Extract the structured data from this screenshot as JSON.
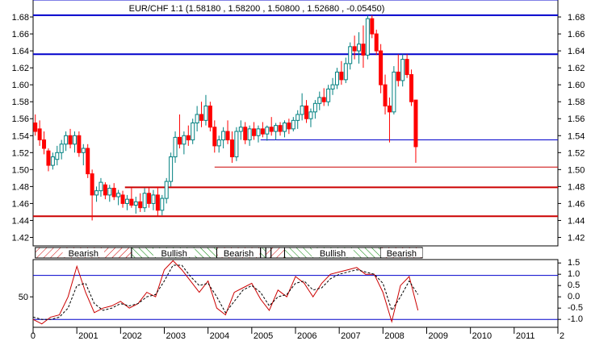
{
  "chart_data": {
    "type": "candlestick",
    "title": "EUR/CHF 1:1 (1.58180 , 1.58200 , 1.50800 , 1.52680 , -0.05450)",
    "xlabel": "",
    "ylabel": "",
    "x_ticks": [
      "2001",
      "2002",
      "2003",
      "2004",
      "2005",
      "2006",
      "2007",
      "2008",
      "2009",
      "2010",
      "2011",
      "2012"
    ],
    "x_tick_first_partial": "0",
    "x_tick_last_partial": "2",
    "x_range": [
      2000.0,
      2012.0
    ],
    "price": {
      "ylim": [
        1.41,
        1.7
      ],
      "y_ticks": [
        "1.42",
        "1.44",
        "1.46",
        "1.48",
        "1.50",
        "1.52",
        "1.54",
        "1.56",
        "1.58",
        "1.60",
        "1.62",
        "1.64",
        "1.66",
        "1.68"
      ],
      "grid": false,
      "colors": {
        "up": "#008080",
        "down": "#ff0000"
      },
      "candles": [
        {
          "x": 2000.05,
          "o": 1.555,
          "h": 1.565,
          "l": 1.54,
          "c": 1.545
        },
        {
          "x": 2000.15,
          "o": 1.548,
          "h": 1.558,
          "l": 1.528,
          "c": 1.535
        },
        {
          "x": 2000.25,
          "o": 1.535,
          "h": 1.545,
          "l": 1.518,
          "c": 1.525
        },
        {
          "x": 2000.35,
          "o": 1.522,
          "h": 1.525,
          "l": 1.498,
          "c": 1.505
        },
        {
          "x": 2000.45,
          "o": 1.505,
          "h": 1.52,
          "l": 1.5,
          "c": 1.515
        },
        {
          "x": 2000.55,
          "o": 1.512,
          "h": 1.528,
          "l": 1.505,
          "c": 1.52
        },
        {
          "x": 2000.65,
          "o": 1.52,
          "h": 1.535,
          "l": 1.512,
          "c": 1.53
        },
        {
          "x": 2000.75,
          "o": 1.53,
          "h": 1.545,
          "l": 1.522,
          "c": 1.54
        },
        {
          "x": 2000.85,
          "o": 1.54,
          "h": 1.548,
          "l": 1.525,
          "c": 1.53
        },
        {
          "x": 2000.95,
          "o": 1.53,
          "h": 1.545,
          "l": 1.52,
          "c": 1.54
        },
        {
          "x": 2001.05,
          "o": 1.54,
          "h": 1.545,
          "l": 1.515,
          "c": 1.52
        },
        {
          "x": 2001.15,
          "o": 1.52,
          "h": 1.53,
          "l": 1.505,
          "c": 1.525
        },
        {
          "x": 2001.25,
          "o": 1.525,
          "h": 1.53,
          "l": 1.49,
          "c": 1.495
        },
        {
          "x": 2001.35,
          "o": 1.495,
          "h": 1.5,
          "l": 1.44,
          "c": 1.47
        },
        {
          "x": 2001.45,
          "o": 1.47,
          "h": 1.48,
          "l": 1.462,
          "c": 1.475
        },
        {
          "x": 2001.55,
          "o": 1.475,
          "h": 1.49,
          "l": 1.468,
          "c": 1.485
        },
        {
          "x": 2001.65,
          "o": 1.482,
          "h": 1.485,
          "l": 1.465,
          "c": 1.47
        },
        {
          "x": 2001.75,
          "o": 1.47,
          "h": 1.482,
          "l": 1.462,
          "c": 1.478
        },
        {
          "x": 2001.85,
          "o": 1.478,
          "h": 1.484,
          "l": 1.464,
          "c": 1.468
        },
        {
          "x": 2001.95,
          "o": 1.468,
          "h": 1.476,
          "l": 1.458,
          "c": 1.472
        },
        {
          "x": 2002.05,
          "o": 1.47,
          "h": 1.475,
          "l": 1.455,
          "c": 1.46
        },
        {
          "x": 2002.15,
          "o": 1.46,
          "h": 1.47,
          "l": 1.452,
          "c": 1.465
        },
        {
          "x": 2002.25,
          "o": 1.465,
          "h": 1.478,
          "l": 1.455,
          "c": 1.458
        },
        {
          "x": 2002.35,
          "o": 1.458,
          "h": 1.468,
          "l": 1.448,
          "c": 1.462
        },
        {
          "x": 2002.45,
          "o": 1.462,
          "h": 1.472,
          "l": 1.45,
          "c": 1.455
        },
        {
          "x": 2002.55,
          "o": 1.455,
          "h": 1.478,
          "l": 1.45,
          "c": 1.472
        },
        {
          "x": 2002.65,
          "o": 1.472,
          "h": 1.478,
          "l": 1.455,
          "c": 1.46
        },
        {
          "x": 2002.75,
          "o": 1.46,
          "h": 1.476,
          "l": 1.452,
          "c": 1.47
        },
        {
          "x": 2002.85,
          "o": 1.47,
          "h": 1.48,
          "l": 1.445,
          "c": 1.452
        },
        {
          "x": 2002.95,
          "o": 1.452,
          "h": 1.47,
          "l": 1.446,
          "c": 1.466
        },
        {
          "x": 2003.05,
          "o": 1.466,
          "h": 1.49,
          "l": 1.46,
          "c": 1.486
        },
        {
          "x": 2003.15,
          "o": 1.486,
          "h": 1.52,
          "l": 1.48,
          "c": 1.515
        },
        {
          "x": 2003.25,
          "o": 1.515,
          "h": 1.545,
          "l": 1.508,
          "c": 1.538
        },
        {
          "x": 2003.35,
          "o": 1.538,
          "h": 1.565,
          "l": 1.525,
          "c": 1.53
        },
        {
          "x": 2003.45,
          "o": 1.53,
          "h": 1.545,
          "l": 1.518,
          "c": 1.54
        },
        {
          "x": 2003.55,
          "o": 1.54,
          "h": 1.552,
          "l": 1.528,
          "c": 1.535
        },
        {
          "x": 2003.65,
          "o": 1.535,
          "h": 1.56,
          "l": 1.53,
          "c": 1.555
        },
        {
          "x": 2003.75,
          "o": 1.555,
          "h": 1.575,
          "l": 1.545,
          "c": 1.565
        },
        {
          "x": 2003.85,
          "o": 1.565,
          "h": 1.58,
          "l": 1.55,
          "c": 1.558
        },
        {
          "x": 2003.95,
          "o": 1.558,
          "h": 1.588,
          "l": 1.552,
          "c": 1.575
        },
        {
          "x": 2004.05,
          "o": 1.575,
          "h": 1.58,
          "l": 1.545,
          "c": 1.55
        },
        {
          "x": 2004.15,
          "o": 1.55,
          "h": 1.558,
          "l": 1.52,
          "c": 1.528
        },
        {
          "x": 2004.25,
          "o": 1.528,
          "h": 1.54,
          "l": 1.52,
          "c": 1.535
        },
        {
          "x": 2004.35,
          "o": 1.535,
          "h": 1.55,
          "l": 1.525,
          "c": 1.545
        },
        {
          "x": 2004.45,
          "o": 1.545,
          "h": 1.558,
          "l": 1.53,
          "c": 1.535
        },
        {
          "x": 2004.55,
          "o": 1.535,
          "h": 1.545,
          "l": 1.508,
          "c": 1.515
        },
        {
          "x": 2004.65,
          "o": 1.515,
          "h": 1.55,
          "l": 1.51,
          "c": 1.545
        },
        {
          "x": 2004.75,
          "o": 1.545,
          "h": 1.558,
          "l": 1.535,
          "c": 1.55
        },
        {
          "x": 2004.85,
          "o": 1.55,
          "h": 1.556,
          "l": 1.53,
          "c": 1.535
        },
        {
          "x": 2004.95,
          "o": 1.535,
          "h": 1.552,
          "l": 1.528,
          "c": 1.548
        },
        {
          "x": 2005.05,
          "o": 1.548,
          "h": 1.556,
          "l": 1.535,
          "c": 1.54
        },
        {
          "x": 2005.15,
          "o": 1.54,
          "h": 1.552,
          "l": 1.532,
          "c": 1.548
        },
        {
          "x": 2005.25,
          "o": 1.548,
          "h": 1.556,
          "l": 1.538,
          "c": 1.542
        },
        {
          "x": 2005.35,
          "o": 1.542,
          "h": 1.552,
          "l": 1.534,
          "c": 1.55
        },
        {
          "x": 2005.45,
          "o": 1.55,
          "h": 1.562,
          "l": 1.54,
          "c": 1.545
        },
        {
          "x": 2005.55,
          "o": 1.545,
          "h": 1.555,
          "l": 1.535,
          "c": 1.552
        },
        {
          "x": 2005.65,
          "o": 1.552,
          "h": 1.556,
          "l": 1.54,
          "c": 1.545
        },
        {
          "x": 2005.75,
          "o": 1.545,
          "h": 1.558,
          "l": 1.538,
          "c": 1.555
        },
        {
          "x": 2005.85,
          "o": 1.555,
          "h": 1.56,
          "l": 1.542,
          "c": 1.548
        },
        {
          "x": 2005.95,
          "o": 1.548,
          "h": 1.562,
          "l": 1.545,
          "c": 1.558
        },
        {
          "x": 2006.05,
          "o": 1.558,
          "h": 1.57,
          "l": 1.548,
          "c": 1.565
        },
        {
          "x": 2006.15,
          "o": 1.565,
          "h": 1.59,
          "l": 1.558,
          "c": 1.575
        },
        {
          "x": 2006.25,
          "o": 1.575,
          "h": 1.582,
          "l": 1.555,
          "c": 1.56
        },
        {
          "x": 2006.35,
          "o": 1.56,
          "h": 1.572,
          "l": 1.55,
          "c": 1.568
        },
        {
          "x": 2006.45,
          "o": 1.568,
          "h": 1.582,
          "l": 1.56,
          "c": 1.578
        },
        {
          "x": 2006.55,
          "o": 1.578,
          "h": 1.592,
          "l": 1.57,
          "c": 1.585
        },
        {
          "x": 2006.65,
          "o": 1.585,
          "h": 1.596,
          "l": 1.575,
          "c": 1.58
        },
        {
          "x": 2006.75,
          "o": 1.58,
          "h": 1.6,
          "l": 1.575,
          "c": 1.595
        },
        {
          "x": 2006.85,
          "o": 1.595,
          "h": 1.608,
          "l": 1.588,
          "c": 1.6
        },
        {
          "x": 2006.95,
          "o": 1.6,
          "h": 1.62,
          "l": 1.595,
          "c": 1.615
        },
        {
          "x": 2007.05,
          "o": 1.615,
          "h": 1.628,
          "l": 1.6,
          "c": 1.606
        },
        {
          "x": 2007.15,
          "o": 1.606,
          "h": 1.632,
          "l": 1.602,
          "c": 1.625
        },
        {
          "x": 2007.25,
          "o": 1.625,
          "h": 1.65,
          "l": 1.618,
          "c": 1.645
        },
        {
          "x": 2007.35,
          "o": 1.645,
          "h": 1.658,
          "l": 1.63,
          "c": 1.64
        },
        {
          "x": 2007.45,
          "o": 1.64,
          "h": 1.662,
          "l": 1.625,
          "c": 1.648
        },
        {
          "x": 2007.55,
          "o": 1.648,
          "h": 1.67,
          "l": 1.62,
          "c": 1.635
        },
        {
          "x": 2007.65,
          "o": 1.635,
          "h": 1.682,
          "l": 1.63,
          "c": 1.678
        },
        {
          "x": 2007.75,
          "o": 1.678,
          "h": 1.682,
          "l": 1.655,
          "c": 1.66
        },
        {
          "x": 2007.85,
          "o": 1.66,
          "h": 1.665,
          "l": 1.635,
          "c": 1.64
        },
        {
          "x": 2007.95,
          "o": 1.64,
          "h": 1.648,
          "l": 1.59,
          "c": 1.6
        },
        {
          "x": 2008.05,
          "o": 1.6,
          "h": 1.612,
          "l": 1.565,
          "c": 1.575
        },
        {
          "x": 2008.15,
          "o": 1.575,
          "h": 1.585,
          "l": 1.532,
          "c": 1.568
        },
        {
          "x": 2008.25,
          "o": 1.568,
          "h": 1.622,
          "l": 1.565,
          "c": 1.615
        },
        {
          "x": 2008.35,
          "o": 1.615,
          "h": 1.636,
          "l": 1.598,
          "c": 1.605
        },
        {
          "x": 2008.45,
          "o": 1.605,
          "h": 1.636,
          "l": 1.598,
          "c": 1.63
        },
        {
          "x": 2008.55,
          "o": 1.63,
          "h": 1.636,
          "l": 1.608,
          "c": 1.612
        },
        {
          "x": 2008.65,
          "o": 1.612,
          "h": 1.618,
          "l": 1.575,
          "c": 1.58
        },
        {
          "x": 2008.75,
          "o": 1.582,
          "h": 1.582,
          "l": 1.508,
          "c": 1.527
        }
      ],
      "annotation_lines": [
        {
          "name": "blue-line-1.70",
          "color": "#0000cc",
          "width": 1,
          "x0": 2000.0,
          "x1": 2012.0,
          "y": 1.7
        },
        {
          "name": "blue-line-1.682",
          "color": "#0000cc",
          "width": 2,
          "x0": 2000.0,
          "x1": 2012.0,
          "y": 1.682
        },
        {
          "name": "blue-line-1.636",
          "color": "#0000cc",
          "width": 2,
          "x0": 2000.0,
          "x1": 2012.0,
          "y": 1.636
        },
        {
          "name": "blue-line-1.535",
          "color": "#0000cc",
          "width": 1,
          "x0": 2005.2,
          "x1": 2012.0,
          "y": 1.535
        },
        {
          "name": "red-line-1.503",
          "color": "#cc0000",
          "width": 1,
          "x0": 2004.15,
          "x1": 2012.0,
          "y": 1.503
        },
        {
          "name": "red-line-1.479",
          "color": "#cc0000",
          "width": 2,
          "x0": 2002.1,
          "x1": 2012.0,
          "y": 1.479
        },
        {
          "name": "red-line-1.445",
          "color": "#cc0000",
          "width": 2,
          "x0": 2000.0,
          "x1": 2012.0,
          "y": 1.445
        }
      ]
    },
    "bands": [
      {
        "label": "Bearish",
        "x0": 2000.05,
        "x1": 2002.25,
        "color": "#cc0000"
      },
      {
        "label": "Bullish",
        "x0": 2002.25,
        "x1": 2004.2,
        "color": "#008000"
      },
      {
        "label": "Bearish",
        "x0": 2004.2,
        "x1": 2005.2,
        "color": "#cc0000"
      },
      {
        "label": "",
        "x0": 2005.2,
        "x1": 2005.32,
        "color": "#008000"
      },
      {
        "label": "",
        "x0": 2005.32,
        "x1": 2005.44,
        "color": "#cc0000"
      },
      {
        "label": "",
        "x0": 2005.44,
        "x1": 2005.75,
        "color": "#cc0000"
      },
      {
        "label": "Bullish",
        "x0": 2005.75,
        "x1": 2007.95,
        "color": "#008000"
      },
      {
        "label": "Bearish",
        "x0": 2007.95,
        "x1": 2008.9,
        "color": "#cc0000"
      }
    ],
    "oscillator": {
      "ylim": [
        -1.35,
        1.65
      ],
      "right_ticks": [
        "1.5",
        "1.0",
        "0.5",
        "0.0",
        "-0.5",
        "-1.0"
      ],
      "left_tick": "50",
      "left_tick_value": 0.0,
      "levels": [
        {
          "name": "osc-level-upper",
          "y": 0.95,
          "color": "#0000cc"
        },
        {
          "name": "osc-level-lower",
          "y": -1.0,
          "color": "#0000cc"
        }
      ],
      "series": [
        {
          "x": [
            2000.0,
            2000.2,
            2000.4,
            2000.6,
            2000.8,
            2001.0,
            2001.2,
            2001.4,
            2001.6,
            2001.8,
            2002.0,
            2002.2,
            2002.4,
            2002.6,
            2002.8,
            2003.0,
            2003.2,
            2003.4,
            2003.6,
            2003.8,
            2004.0,
            2004.2,
            2004.4,
            2004.6,
            2004.8,
            2005.0,
            2005.2,
            2005.4,
            2005.6,
            2005.8,
            2006.0,
            2006.2,
            2006.4,
            2006.6,
            2006.8,
            2007.0,
            2007.2,
            2007.4,
            2007.6,
            2007.8,
            2008.0,
            2008.2,
            2008.4,
            2008.6,
            2008.8
          ],
          "values": [
            -1.0,
            -1.2,
            -0.9,
            -0.8,
            0.0,
            1.35,
            0.2,
            -0.7,
            -0.5,
            -0.4,
            -0.2,
            -0.5,
            -0.3,
            0.2,
            0.0,
            1.2,
            1.6,
            1.2,
            0.7,
            0.2,
            0.7,
            -0.5,
            -0.8,
            0.2,
            0.4,
            0.6,
            -0.1,
            -0.6,
            0.3,
            0.0,
            0.9,
            0.6,
            0.0,
            0.6,
            1.0,
            1.1,
            1.2,
            1.3,
            1.0,
            1.0,
            0.2,
            -1.1,
            0.5,
            0.9,
            -0.6
          ],
          "color": "#cc0000",
          "style": "solid"
        },
        {
          "x": [
            2000.0,
            2000.2,
            2000.4,
            2000.6,
            2000.8,
            2001.0,
            2001.2,
            2001.4,
            2001.6,
            2001.8,
            2002.0,
            2002.2,
            2002.4,
            2002.6,
            2002.8,
            2003.0,
            2003.2,
            2003.4,
            2003.6,
            2003.8,
            2004.0,
            2004.2,
            2004.4,
            2004.6,
            2004.8,
            2005.0,
            2005.2,
            2005.4,
            2005.6,
            2005.8,
            2006.0,
            2006.2,
            2006.4,
            2006.6,
            2006.8,
            2007.0,
            2007.2,
            2007.4,
            2007.6,
            2007.8,
            2008.0,
            2008.2,
            2008.4,
            2008.6,
            2008.8
          ],
          "values": [
            -0.9,
            -1.0,
            -1.0,
            -0.9,
            -0.5,
            0.5,
            0.6,
            -0.3,
            -0.6,
            -0.5,
            -0.3,
            -0.4,
            -0.3,
            0.0,
            0.1,
            0.7,
            1.4,
            1.4,
            0.9,
            0.5,
            0.6,
            0.0,
            -0.7,
            -0.2,
            0.3,
            0.5,
            0.2,
            -0.4,
            0.0,
            0.1,
            0.6,
            0.7,
            0.3,
            0.4,
            0.8,
            1.0,
            1.1,
            1.2,
            1.1,
            1.0,
            0.6,
            -0.6,
            0.0,
            0.7,
            0.1
          ],
          "color": "#000000",
          "style": "dashed"
        }
      ]
    }
  }
}
